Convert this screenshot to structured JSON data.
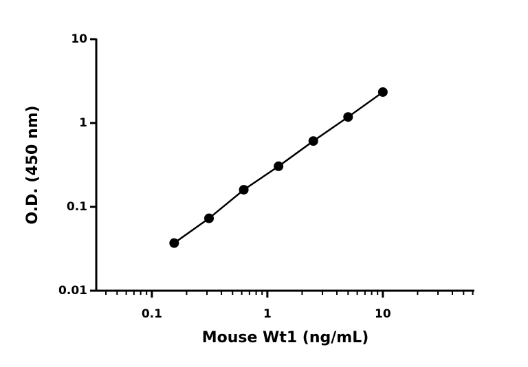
{
  "chart_data": {
    "type": "scatter",
    "x_label": "Mouse Wt1 (ng/mL)",
    "y_label": "O.D. (450 nm)",
    "x_scale": "log",
    "y_scale": "log",
    "xlim": [
      0.033,
      62
    ],
    "ylim": [
      0.01,
      10
    ],
    "xticks": [
      0.1,
      1,
      10
    ],
    "yticks": [
      0.01,
      0.1,
      1,
      10
    ],
    "series": [
      {
        "color": "#000000",
        "x": [
          0.156,
          0.3125,
          0.625,
          1.25,
          2.5,
          5,
          10
        ],
        "values": [
          0.037,
          0.073,
          0.16,
          0.305,
          0.61,
          1.18,
          2.34
        ]
      }
    ]
  }
}
